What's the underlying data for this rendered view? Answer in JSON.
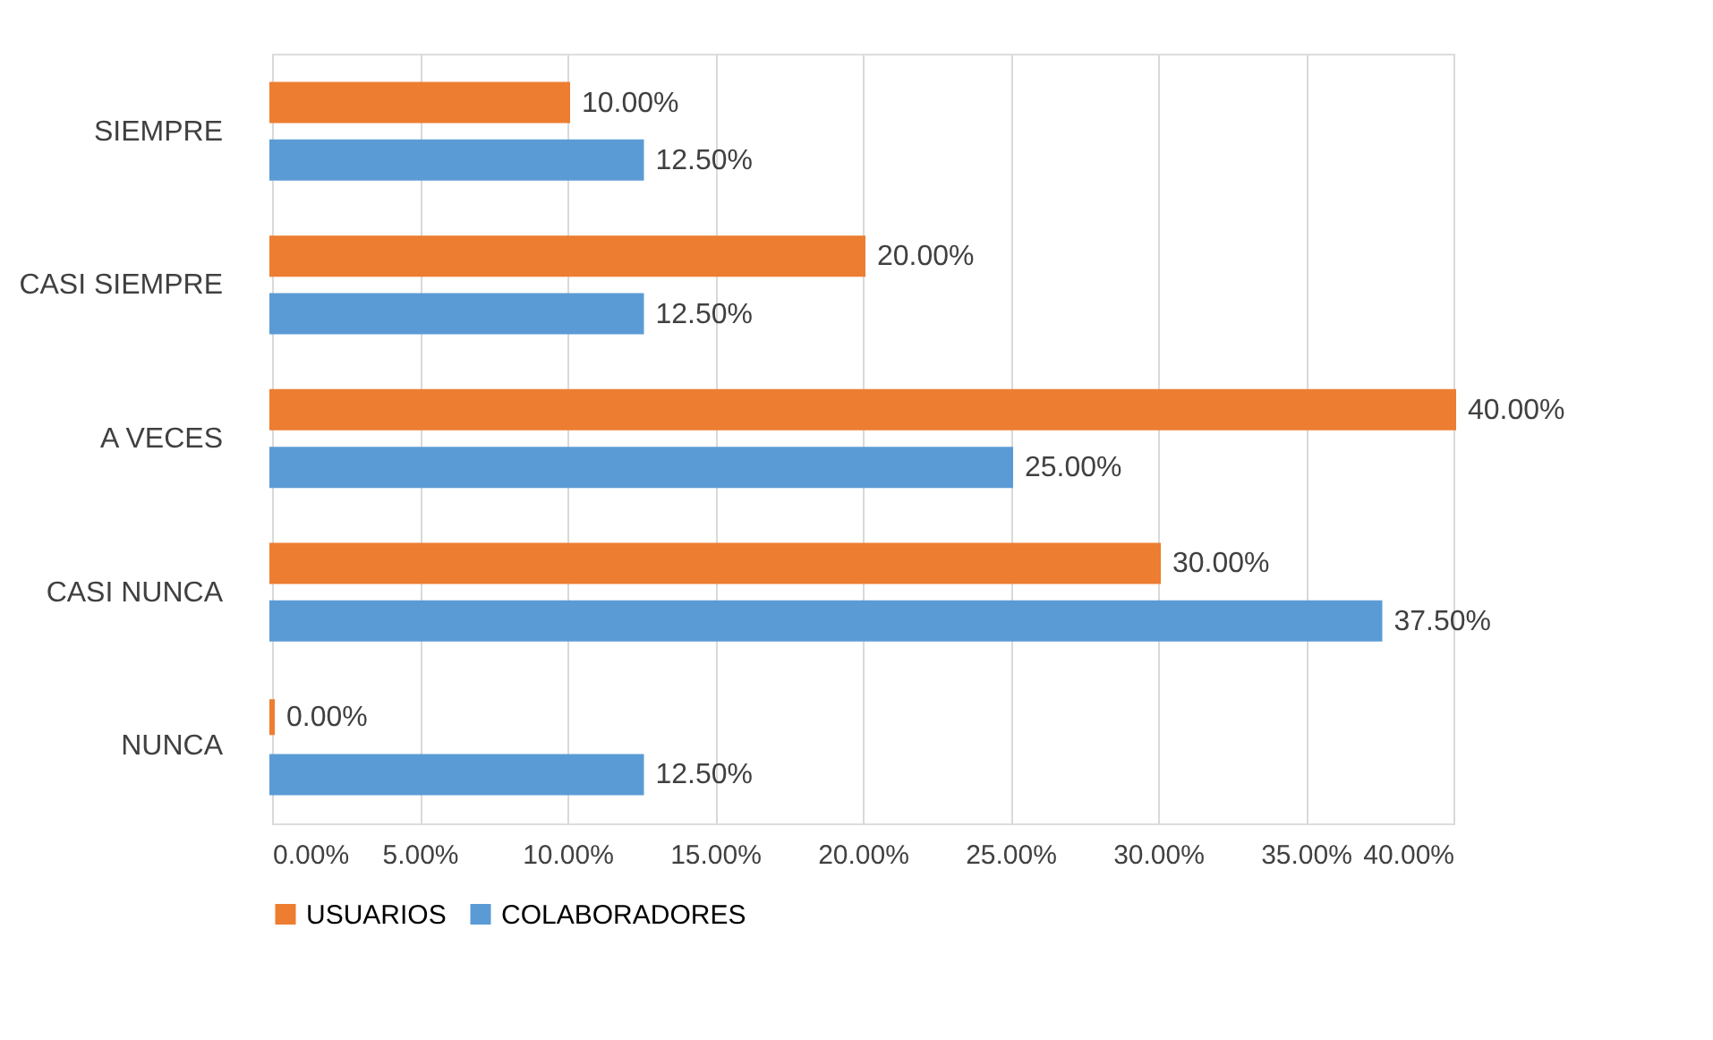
{
  "chart_data": {
    "type": "bar",
    "orientation": "horizontal",
    "categories": [
      "SIEMPRE",
      "CASI SIEMPRE",
      "A VECES",
      "CASI NUNCA",
      "NUNCA"
    ],
    "series": [
      {
        "name": "USUARIOS",
        "color": "#ed7d31",
        "values": [
          10,
          20,
          40,
          30,
          0
        ],
        "value_labels": [
          "10.00%",
          "20.00%",
          "40.00%",
          "30.00%",
          "0.00%"
        ]
      },
      {
        "name": "COLABORADORES",
        "color": "#5b9bd5",
        "values": [
          12.5,
          12.5,
          25,
          37.5,
          12.5
        ],
        "value_labels": [
          "12.50%",
          "12.50%",
          "25.00%",
          "37.50%",
          "12.50%"
        ]
      }
    ],
    "xlim": [
      0,
      40
    ],
    "xticks": [
      {
        "value": 0,
        "label": "0.00%"
      },
      {
        "value": 5,
        "label": "5.00%"
      },
      {
        "value": 10,
        "label": "10.00%"
      },
      {
        "value": 15,
        "label": "15.00%"
      },
      {
        "value": 20,
        "label": "20.00%"
      },
      {
        "value": 25,
        "label": "25.00%"
      },
      {
        "value": 30,
        "label": "30.00%"
      },
      {
        "value": 35,
        "label": "35.00%"
      },
      {
        "value": 40,
        "label": "40.00%"
      }
    ],
    "grid": "x",
    "legend": "bottom"
  }
}
